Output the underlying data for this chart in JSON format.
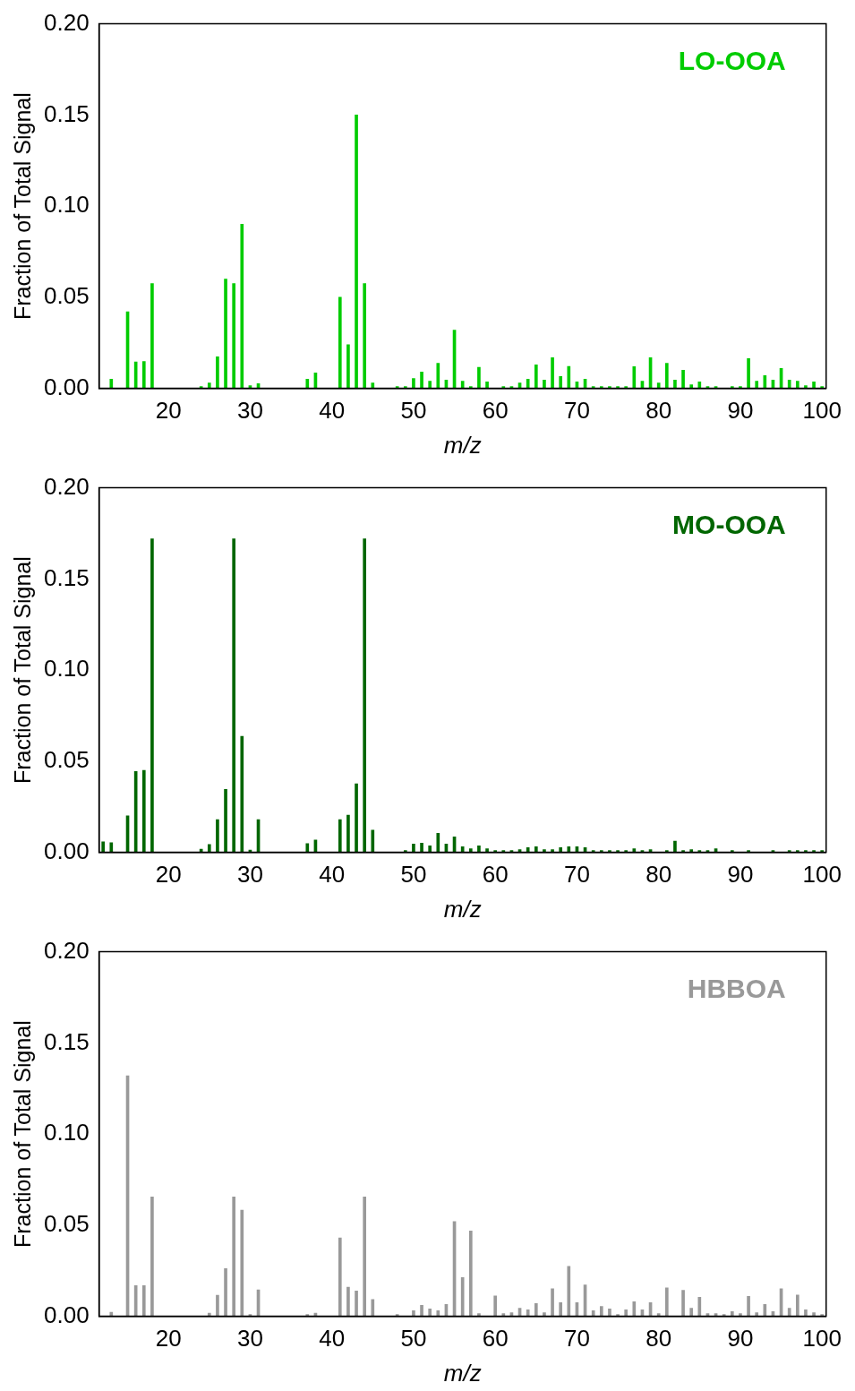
{
  "chart_data": [
    {
      "type": "bar",
      "xlabel": "m/z",
      "ylabel": "Fraction of Total Signal",
      "x": [
        13,
        14,
        15,
        16,
        17,
        18,
        19,
        20,
        21,
        22,
        23,
        24,
        25,
        26,
        27,
        28,
        29,
        30,
        31,
        32,
        33,
        34,
        35,
        36,
        37,
        38,
        39,
        40,
        41,
        42,
        43,
        44,
        45,
        46,
        47,
        48,
        49,
        50,
        51,
        52,
        53,
        54,
        55,
        56,
        57,
        58,
        59,
        60,
        61,
        62,
        63,
        64,
        65,
        66,
        67,
        68,
        69,
        70,
        71,
        72,
        73,
        74,
        75,
        76,
        77,
        78,
        79,
        80,
        81,
        82,
        83,
        84,
        85,
        86,
        87,
        88,
        89,
        90,
        91,
        92,
        93,
        94,
        95,
        96,
        97,
        98,
        99,
        100
      ],
      "xlim": [
        11.5,
        100.5
      ],
      "xticks": [
        20,
        30,
        40,
        50,
        60,
        70,
        80,
        90,
        100
      ],
      "ylim": [
        0,
        0.2
      ],
      "yticks": [
        {
          "value": 0,
          "label": "0.00"
        },
        {
          "value": 0.05,
          "label": "0.05"
        },
        {
          "value": 0.1,
          "label": "0.10"
        },
        {
          "value": 0.15,
          "label": "0.15"
        },
        {
          "value": 0.2,
          "label": "0.20"
        }
      ],
      "grid": false,
      "legend": false,
      "series": [
        {
          "name": "LO-OOA",
          "color": "#00cc00",
          "values": [
            0.0051,
            null,
            0.042,
            0.0145,
            0.0148,
            0.0575,
            null,
            null,
            null,
            null,
            null,
            0.001,
            0.003,
            0.0173,
            0.06,
            0.0575,
            0.09,
            0.0015,
            0.0026,
            null,
            null,
            null,
            null,
            null,
            0.005,
            0.0085,
            null,
            null,
            0.05,
            0.024,
            0.15,
            0.0575,
            0.003,
            null,
            null,
            0.001,
            0.001,
            0.0054,
            0.009,
            0.004,
            0.0138,
            0.0046,
            0.032,
            0.004,
            0.001,
            0.0116,
            0.0036,
            null,
            0.001,
            0.001,
            0.003,
            0.005,
            0.0129,
            0.0046,
            0.0168,
            0.0065,
            0.012,
            0.0036,
            0.005,
            0.001,
            0.001,
            0.001,
            0.001,
            0.001,
            0.0119,
            0.004,
            0.0168,
            0.003,
            0.0138,
            0.0046,
            0.01,
            0.002,
            0.0036,
            0.001,
            0.001,
            null,
            0.001,
            0.001,
            0.0163,
            0.004,
            0.007,
            0.0046,
            0.011,
            0.0046,
            0.004,
            0.0015,
            0.0036,
            0.001
          ]
        }
      ]
    },
    {
      "type": "bar",
      "xlabel": "m/z",
      "ylabel": "Fraction of Total Signal",
      "x": [
        12,
        13,
        14,
        15,
        16,
        17,
        18,
        19,
        20,
        21,
        22,
        23,
        24,
        25,
        26,
        27,
        28,
        29,
        30,
        31,
        32,
        33,
        34,
        35,
        36,
        37,
        38,
        39,
        40,
        41,
        42,
        43,
        44,
        45,
        46,
        47,
        48,
        49,
        50,
        51,
        52,
        53,
        54,
        55,
        56,
        57,
        58,
        59,
        60,
        61,
        62,
        63,
        64,
        65,
        66,
        67,
        68,
        69,
        70,
        71,
        72,
        73,
        74,
        75,
        76,
        77,
        78,
        79,
        80,
        81,
        82,
        83,
        84,
        85,
        86,
        87,
        88,
        89,
        90,
        91,
        92,
        93,
        94,
        95,
        96,
        97,
        98,
        99,
        100
      ],
      "xlim": [
        11.5,
        100.5
      ],
      "xticks": [
        20,
        30,
        40,
        50,
        60,
        70,
        80,
        90,
        100
      ],
      "ylim": [
        0,
        0.2
      ],
      "yticks": [
        {
          "value": 0,
          "label": "0.00"
        },
        {
          "value": 0.05,
          "label": "0.05"
        },
        {
          "value": 0.1,
          "label": "0.10"
        },
        {
          "value": 0.15,
          "label": "0.15"
        },
        {
          "value": 0.2,
          "label": "0.20"
        }
      ],
      "grid": false,
      "legend": false,
      "series": [
        {
          "name": "MO-OOA",
          "color": "#006600",
          "values": [
            0.0058,
            0.0053,
            null,
            0.02,
            0.0444,
            0.045,
            0.172,
            null,
            null,
            null,
            null,
            null,
            0.0017,
            0.0043,
            0.0179,
            0.0345,
            0.172,
            0.0636,
            0.0012,
            0.0179,
            null,
            null,
            null,
            null,
            null,
            0.0048,
            0.0068,
            null,
            null,
            0.0179,
            0.0204,
            0.0376,
            0.172,
            0.0122,
            null,
            null,
            null,
            0.001,
            0.0046,
            0.0051,
            0.0036,
            0.0104,
            0.0046,
            0.0085,
            0.0031,
            0.002,
            0.0036,
            0.002,
            0.001,
            0.001,
            0.001,
            0.0015,
            0.0026,
            0.0031,
            0.0015,
            0.0015,
            0.0026,
            0.0031,
            0.0031,
            0.0026,
            0.001,
            0.001,
            0.001,
            0.001,
            0.001,
            0.002,
            0.001,
            0.0015,
            null,
            0.001,
            0.0061,
            0.001,
            0.0015,
            0.001,
            0.001,
            0.002,
            null,
            0.001,
            null,
            0.001,
            null,
            null,
            0.001,
            null,
            0.001,
            0.001,
            0.001,
            0.001,
            0.001
          ]
        }
      ]
    },
    {
      "type": "bar",
      "xlabel": "m/z",
      "ylabel": "Fraction of Total Signal",
      "x": [
        13,
        14,
        15,
        16,
        17,
        18,
        19,
        20,
        21,
        22,
        23,
        24,
        25,
        26,
        27,
        28,
        29,
        30,
        31,
        32,
        33,
        34,
        35,
        36,
        37,
        38,
        39,
        40,
        41,
        42,
        43,
        44,
        45,
        46,
        47,
        48,
        49,
        50,
        51,
        52,
        53,
        54,
        55,
        56,
        57,
        58,
        59,
        60,
        61,
        62,
        63,
        64,
        65,
        66,
        67,
        68,
        69,
        70,
        71,
        72,
        73,
        74,
        75,
        76,
        77,
        78,
        79,
        80,
        81,
        82,
        83,
        84,
        85,
        86,
        87,
        88,
        89,
        90,
        91,
        92,
        93,
        94,
        95,
        96,
        97,
        98,
        99,
        100
      ],
      "xlim": [
        11.5,
        100.5
      ],
      "xticks": [
        20,
        30,
        40,
        50,
        60,
        70,
        80,
        90,
        100
      ],
      "ylim": [
        0,
        0.2
      ],
      "yticks": [
        {
          "value": 0,
          "label": "0.00"
        },
        {
          "value": 0.05,
          "label": "0.05"
        },
        {
          "value": 0.1,
          "label": "0.10"
        },
        {
          "value": 0.15,
          "label": "0.15"
        },
        {
          "value": 0.2,
          "label": "0.20"
        }
      ],
      "grid": false,
      "legend": false,
      "series": [
        {
          "name": "HBBOA",
          "color": "#999999",
          "values": [
            0.0022,
            null,
            0.132,
            0.0168,
            0.0168,
            0.0655,
            null,
            null,
            null,
            null,
            null,
            null,
            0.0017,
            0.0116,
            0.0262,
            0.0655,
            0.0582,
            0.001,
            0.0145,
            null,
            null,
            null,
            null,
            null,
            0.001,
            0.0017,
            null,
            null,
            0.043,
            0.016,
            0.0139,
            0.0655,
            0.0092,
            null,
            null,
            0.001,
            null,
            0.0031,
            0.006,
            0.0041,
            0.0031,
            0.0065,
            0.052,
            0.0213,
            0.0468,
            0.0015,
            null,
            0.0112,
            0.0015,
            0.002,
            0.0044,
            0.0036,
            0.007,
            0.002,
            0.0151,
            0.0075,
            0.0274,
            0.0075,
            0.0172,
            0.0031,
            0.0054,
            0.0041,
            0.001,
            0.0036,
            0.008,
            0.0036,
            0.0075,
            0.0015,
            0.0156,
            null,
            0.0143,
            0.0044,
            0.0104,
            0.0015,
            0.0015,
            0.001,
            0.0026,
            0.0015,
            0.0109,
            0.002,
            0.0065,
            0.0026,
            0.0151,
            0.0044,
            0.0117,
            0.0036,
            0.002,
            0.001
          ]
        }
      ]
    }
  ]
}
